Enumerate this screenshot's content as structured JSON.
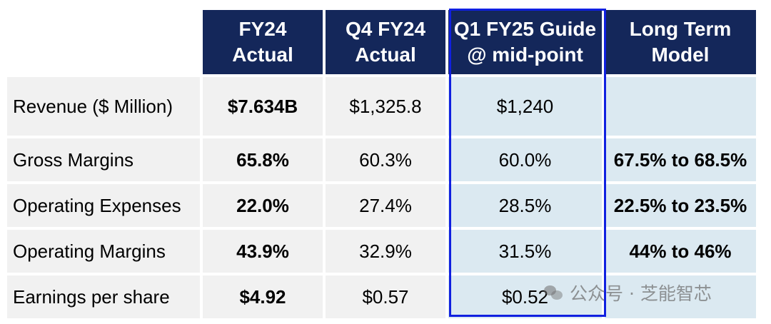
{
  "headers": [
    {
      "line1": "FY24",
      "line2": "Actual"
    },
    {
      "line1": "Q4 FY24",
      "line2": "Actual"
    },
    {
      "line1": "Q1 FY25 Guide",
      "line2": "@ mid-point"
    },
    {
      "line1": "Long Term",
      "line2": "Model"
    }
  ],
  "rows": [
    {
      "label": "Revenue ($ Million)",
      "fy24": "$7.634B",
      "q4": "$1,325.8",
      "q1": "$1,240",
      "lt": ""
    },
    {
      "label": "Gross Margins",
      "fy24": "65.8%",
      "q4": "60.3%",
      "q1": "60.0%",
      "lt": "67.5% to 68.5%"
    },
    {
      "label": "Operating Expenses",
      "fy24": "22.0%",
      "q4": "27.4%",
      "q1": "28.5%",
      "lt": "22.5% to 23.5%"
    },
    {
      "label": "Operating Margins",
      "fy24": "43.9%",
      "q4": "32.9%",
      "q1": "31.5%",
      "lt": "44% to 46%"
    },
    {
      "label": "Earnings per share",
      "fy24": "$4.92",
      "q4": "$0.57",
      "q1": "$0.52",
      "lt": ""
    }
  ],
  "watermark": {
    "text": "公众号 · 芝能智芯",
    "icon": "wechat-icon"
  },
  "colors": {
    "header_bg": "#14275a",
    "cell_bg": "#f1f1f1",
    "highlight_bg": "#dbe9f1",
    "highlight_border": "#1020e0"
  }
}
